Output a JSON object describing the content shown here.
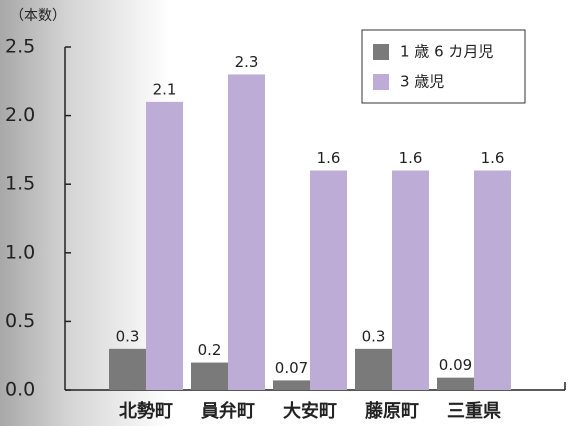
{
  "chart_data": {
    "type": "bar",
    "y_label": "（本数）",
    "categories": [
      "北勢町",
      "員弁町",
      "大安町",
      "藤原町",
      "三重県"
    ],
    "series": [
      {
        "name": "1 歳 6 カ月児",
        "color": "#7a7a7a",
        "values": [
          0.3,
          0.2,
          0.07,
          0.3,
          0.09
        ]
      },
      {
        "name": "3 歳児",
        "color": "#bcacd6",
        "values": [
          2.1,
          2.3,
          1.6,
          1.6,
          1.6
        ]
      }
    ],
    "ylim": [
      0,
      2.5
    ],
    "yticks": [
      {
        "value": 0,
        "label": "0.0"
      },
      {
        "value": 0.5,
        "label": "0.5"
      },
      {
        "value": 1,
        "label": "1.0"
      },
      {
        "value": 1.5,
        "label": "1.5"
      },
      {
        "value": 2,
        "label": "2.0"
      },
      {
        "value": 2.5,
        "label": "2.5"
      }
    ]
  }
}
